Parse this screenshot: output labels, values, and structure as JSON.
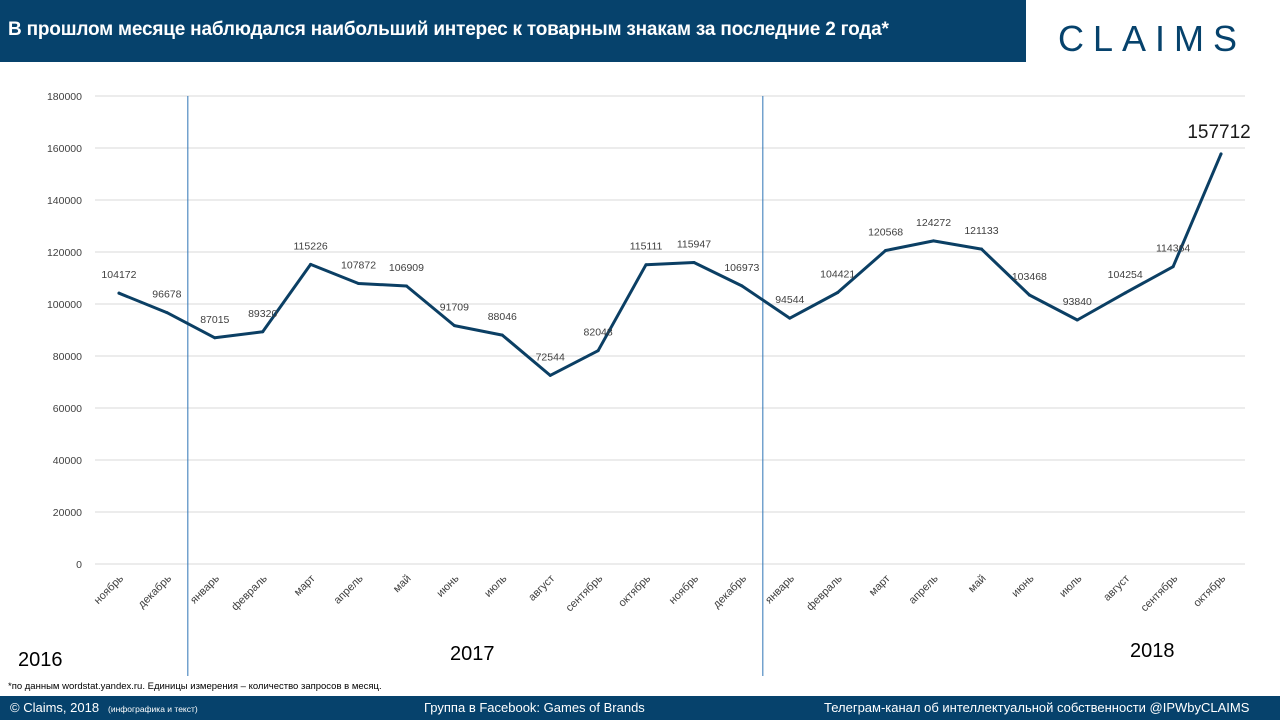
{
  "header": {
    "title": "В прошлом месяце наблюдался наибольший интерес к товарным знакам за последние 2 года*",
    "logo": "CLAIMS"
  },
  "colors": {
    "brand": "#06426c",
    "line": "#0b3f64",
    "grid": "#d9d9d9",
    "divider": "#2e75b6"
  },
  "years": {
    "y2016": "2016",
    "y2017": "2017",
    "y2018": "2018"
  },
  "footnote": "*по данным wordstat.yandex.ru. Единицы измерения – количество запросов в месяц.",
  "footer": {
    "copyright": "© Claims, 2018",
    "copyright_note": "(инфографика и текст)",
    "facebook": "Группа в Facebook: Games of Brands",
    "telegram": "Телеграм-канал  об интеллектуальной  собственности  @IPWbyCLAIMS"
  },
  "chart_data": {
    "type": "line",
    "categories": [
      "ноябрь",
      "декабрь",
      "январь",
      "февраль",
      "март",
      "апрель",
      "май",
      "июнь",
      "июль",
      "август",
      "сентябрь",
      "октябрь",
      "ноябрь",
      "декабрь",
      "январь",
      "февраль",
      "март",
      "апрель",
      "май",
      "июнь",
      "июль",
      "август",
      "сентябрь",
      "октябрь"
    ],
    "series": [
      {
        "values": [
          104172,
          96678,
          87015,
          89320,
          115226,
          107872,
          106909,
          91709,
          88046,
          72544,
          82048,
          115111,
          115947,
          106973,
          94544,
          104421,
          120568,
          124272,
          121133,
          103468,
          93840,
          104254,
          114364,
          157712
        ]
      }
    ],
    "ylim": [
      0,
      180000
    ],
    "yticks": [
      0,
      20000,
      40000,
      60000,
      80000,
      100000,
      120000,
      140000,
      160000,
      180000
    ],
    "grid": true,
    "legend": "none"
  }
}
